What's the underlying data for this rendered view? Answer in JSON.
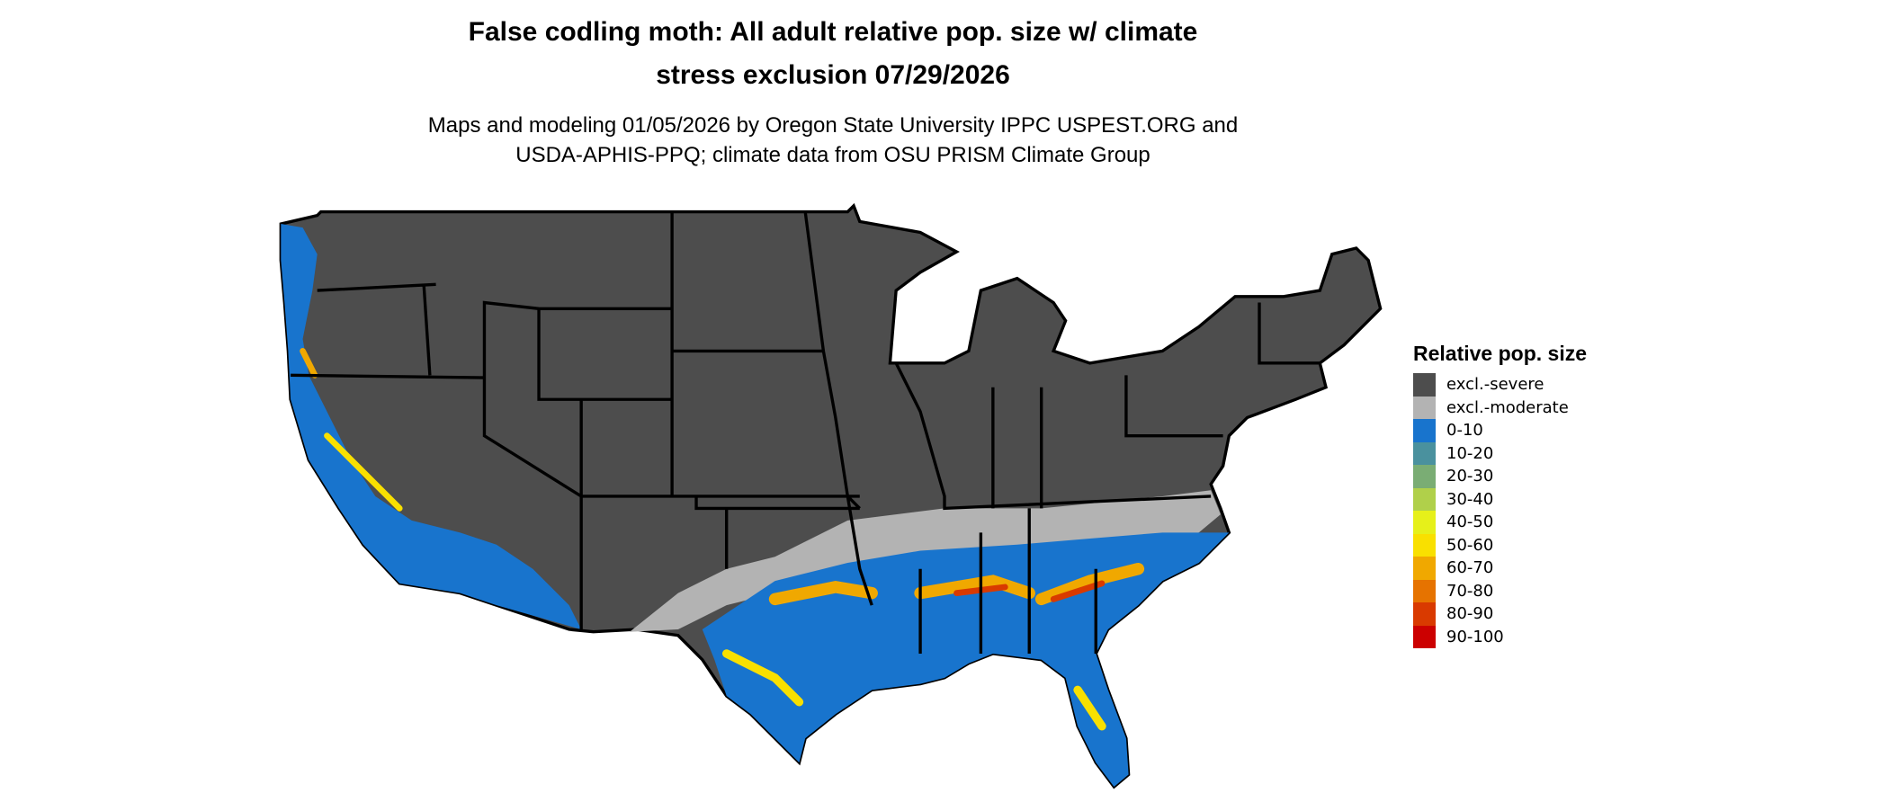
{
  "title_line1": "False codling moth: All adult relative pop. size w/ climate",
  "title_line2": "stress exclusion 07/29/2026",
  "subtitle_line1": "Maps and modeling 01/05/2026 by Oregon State University IPPC USPEST.ORG and",
  "subtitle_line2": "USDA-APHIS-PPQ; climate data from OSU PRISM Climate Group",
  "legend": {
    "title": "Relative pop. size",
    "items": [
      {
        "label": "excl.-severe",
        "color": "#4d4d4d"
      },
      {
        "label": "excl.-moderate",
        "color": "#b3b3b3"
      },
      {
        "label": "0-10",
        "color": "#1874cd"
      },
      {
        "label": "10-20",
        "color": "#4a919e"
      },
      {
        "label": "20-30",
        "color": "#7aad74"
      },
      {
        "label": "30-40",
        "color": "#b0d04a"
      },
      {
        "label": "40-50",
        "color": "#e6f01a"
      },
      {
        "label": "50-60",
        "color": "#f9e000"
      },
      {
        "label": "60-70",
        "color": "#f0a800"
      },
      {
        "label": "70-80",
        "color": "#e67300"
      },
      {
        "label": "80-90",
        "color": "#d93a00"
      },
      {
        "label": "90-100",
        "color": "#cc0000"
      }
    ]
  }
}
